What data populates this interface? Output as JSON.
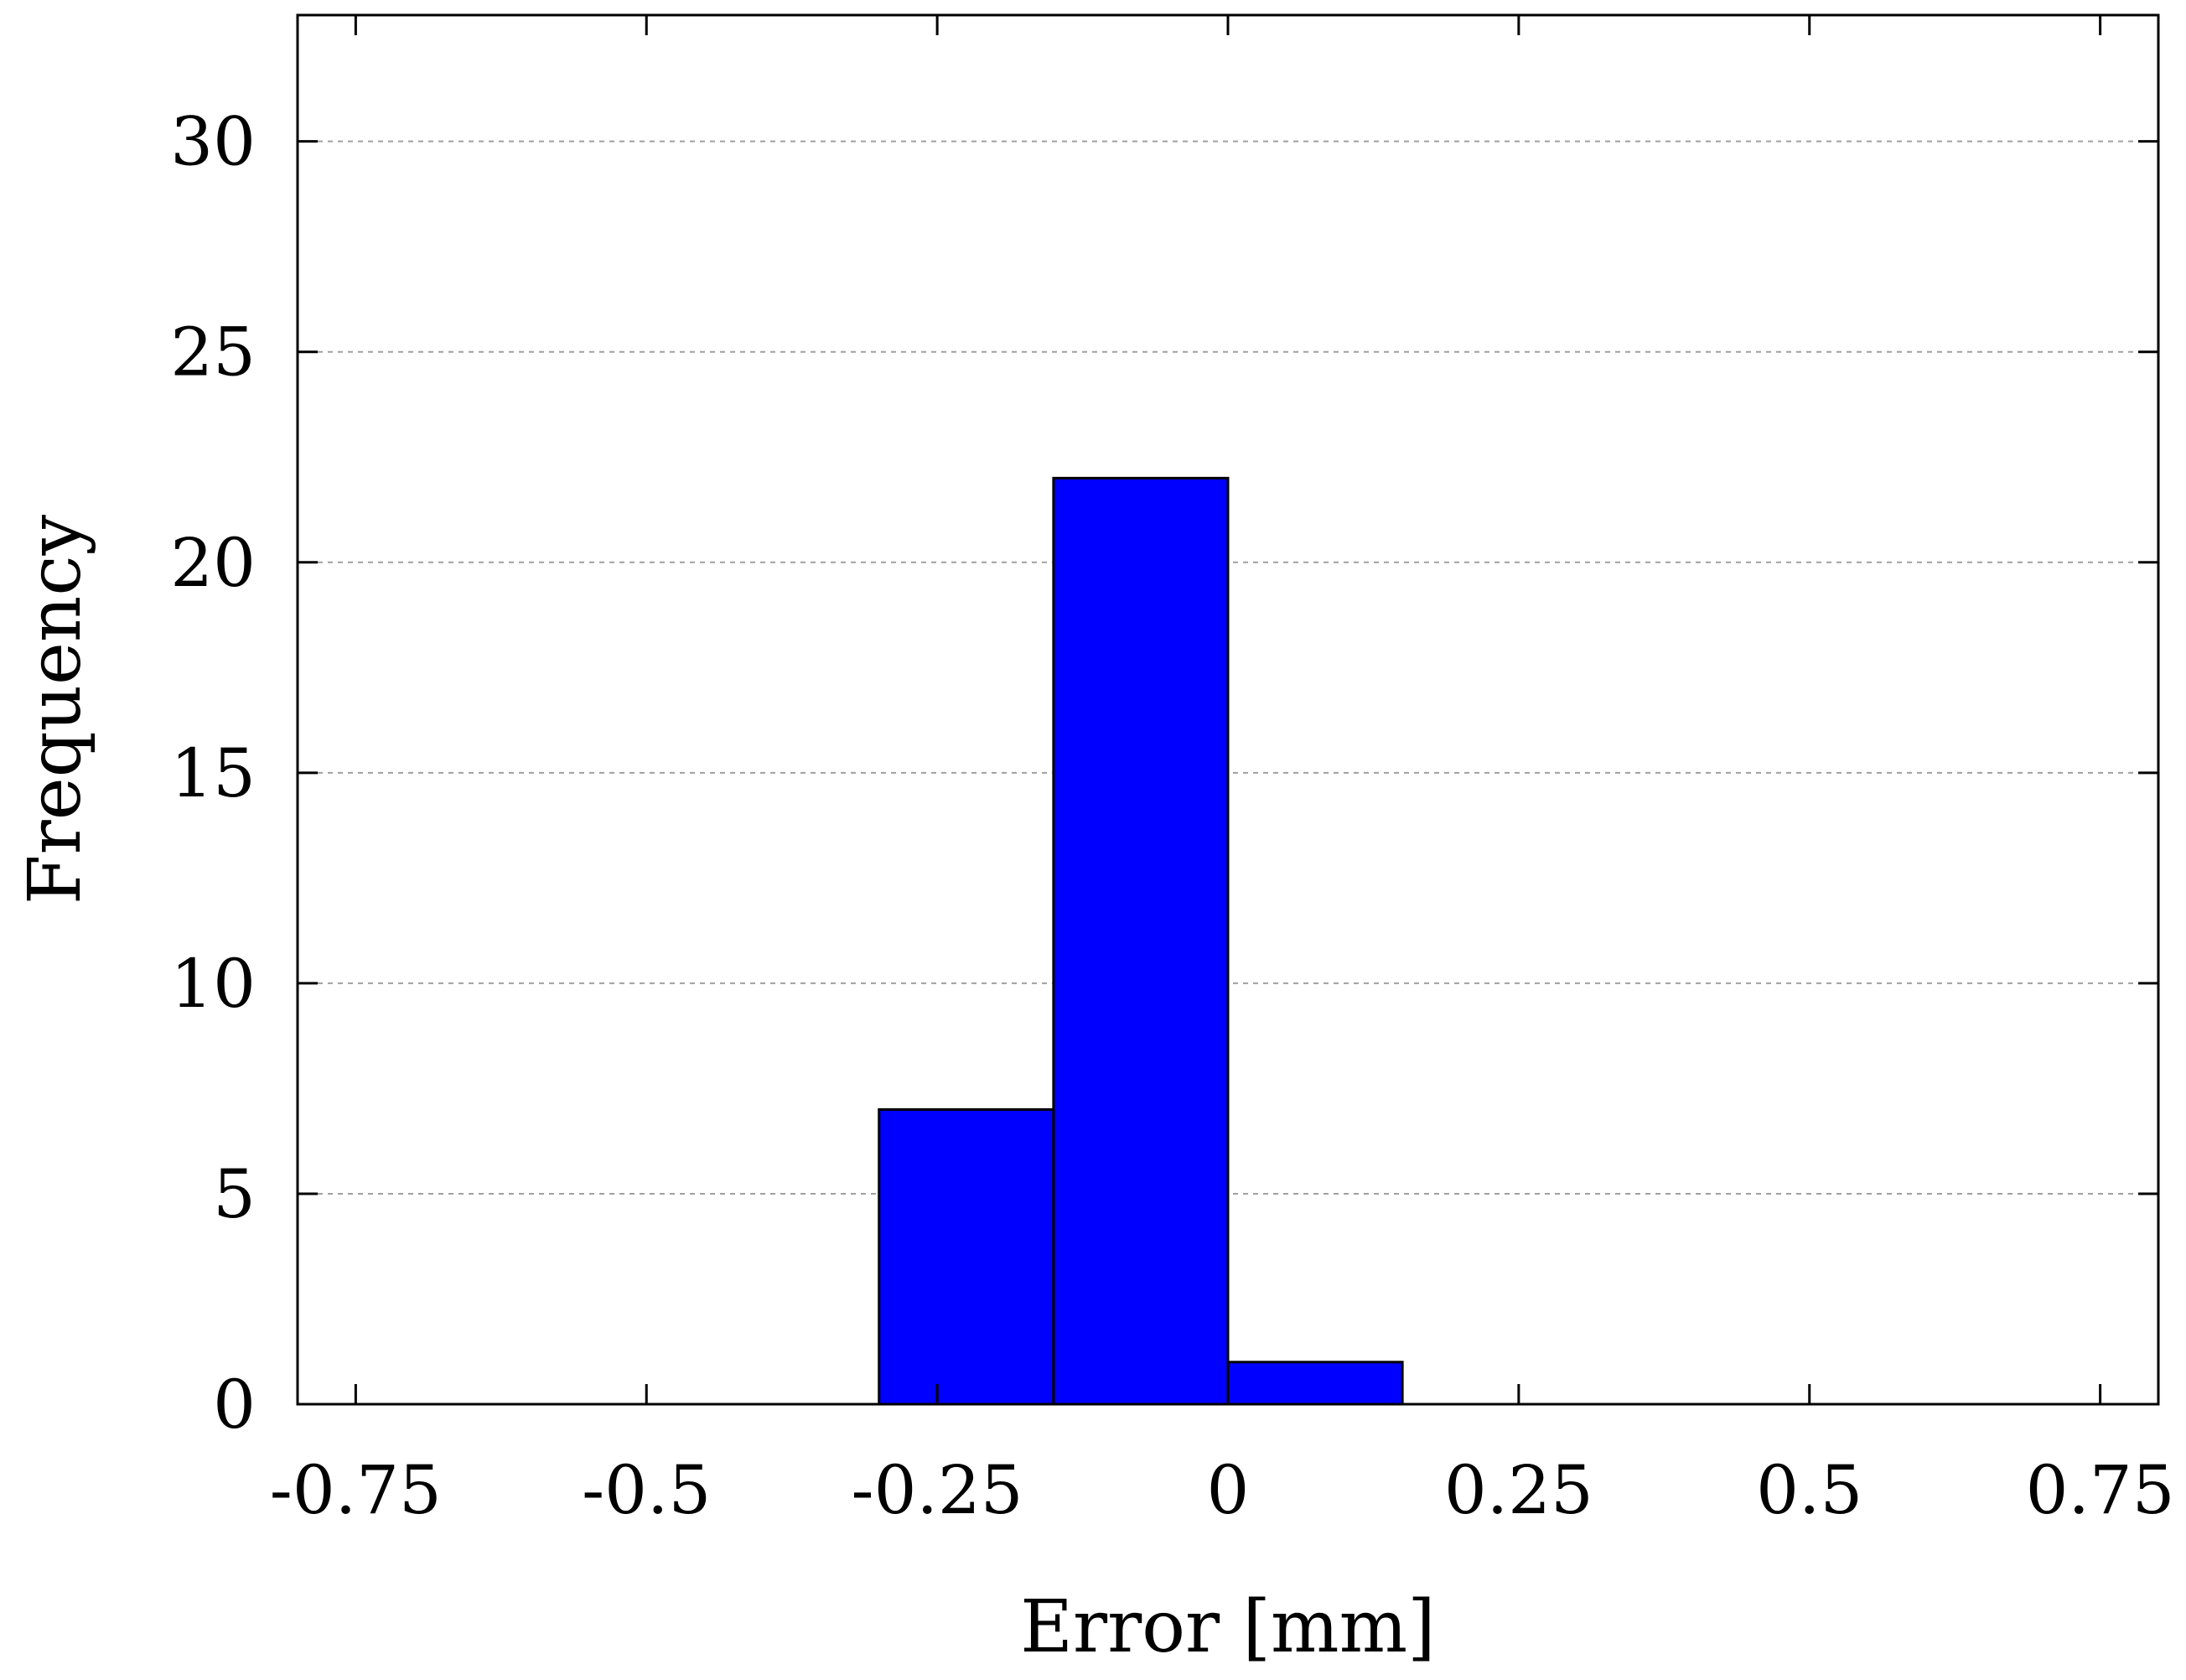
{
  "chart_data": {
    "type": "bar",
    "histogram": true,
    "xlabel": "Error [mm]",
    "ylabel": "Frequency",
    "xlim": [
      -0.8,
      0.8
    ],
    "ylim": [
      0,
      33
    ],
    "xticks": [
      -0.75,
      -0.5,
      -0.25,
      0,
      0.25,
      0.5,
      0.75
    ],
    "xtick_labels": [
      "-0.75",
      "-0.5",
      "-0.25",
      "0",
      "0.25",
      "0.5",
      "0.75"
    ],
    "yticks": [
      0,
      5,
      10,
      15,
      20,
      25,
      30
    ],
    "ytick_labels": [
      "0",
      "5",
      "10",
      "15",
      "20",
      "25",
      "30"
    ],
    "grid": "horizontal-dashed",
    "bar_color": "#0000ff",
    "bins": [
      {
        "x0": -0.3,
        "x1": -0.15,
        "value": 7
      },
      {
        "x0": -0.15,
        "x1": 0.0,
        "value": 22
      },
      {
        "x0": 0.0,
        "x1": 0.15,
        "value": 1
      }
    ]
  }
}
